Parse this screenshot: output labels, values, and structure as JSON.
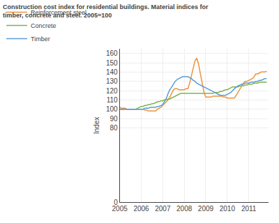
{
  "chart_data": {
    "type": "line",
    "title": "Construction cost index for residential buildings. Material indices for\ntimber, concrete and steel. 2005=100",
    "y_label": "Index",
    "x": [
      2005.0,
      2005.08,
      2005.17,
      2005.25,
      2005.33,
      2005.42,
      2005.5,
      2005.58,
      2005.67,
      2005.75,
      2005.83,
      2005.92,
      2006.0,
      2006.08,
      2006.17,
      2006.25,
      2006.33,
      2006.42,
      2006.5,
      2006.58,
      2006.67,
      2006.75,
      2006.83,
      2006.92,
      2007.0,
      2007.08,
      2007.17,
      2007.25,
      2007.33,
      2007.42,
      2007.5,
      2007.58,
      2007.67,
      2007.75,
      2007.83,
      2007.92,
      2008.0,
      2008.08,
      2008.17,
      2008.25,
      2008.33,
      2008.42,
      2008.5,
      2008.58,
      2008.67,
      2008.75,
      2008.83,
      2008.92,
      2009.0,
      2009.08,
      2009.17,
      2009.25,
      2009.33,
      2009.42,
      2009.5,
      2009.58,
      2009.67,
      2009.75,
      2009.83,
      2009.92,
      2010.0,
      2010.08,
      2010.17,
      2010.25,
      2010.33,
      2010.42,
      2010.5,
      2010.58,
      2010.67,
      2010.75,
      2010.83,
      2010.92,
      2011.0,
      2011.08,
      2011.17,
      2011.25,
      2011.33,
      2011.42,
      2011.5,
      2011.58,
      2011.67,
      2011.75,
      2011.83
    ],
    "series": [
      {
        "name": "Reinforcement steel",
        "color": "#f0933a",
        "values": [
          102,
          101,
          101,
          101,
          100,
          100,
          100,
          100,
          100,
          100,
          100,
          100,
          100,
          100,
          99,
          99,
          98,
          98,
          98,
          98,
          98,
          100,
          101,
          102,
          104,
          106,
          108,
          110,
          113,
          117,
          121,
          122,
          122,
          121,
          121,
          121,
          121,
          122,
          122,
          128,
          135,
          143,
          152,
          155,
          148,
          138,
          128,
          118,
          113,
          113,
          113,
          113,
          114,
          114,
          114,
          114,
          114,
          114,
          113,
          113,
          112,
          112,
          112,
          112,
          112,
          115,
          118,
          122,
          125,
          128,
          130,
          130,
          131,
          132,
          133,
          135,
          138,
          138,
          139,
          140,
          140,
          140,
          141
        ]
      },
      {
        "name": "Concrete",
        "color": "#7ab648",
        "values": [
          100,
          100,
          100,
          100,
          100,
          100,
          100,
          100,
          100,
          100,
          101,
          102,
          103,
          103,
          104,
          104,
          105,
          105,
          106,
          106,
          107,
          108,
          108,
          109,
          109,
          110,
          110,
          111,
          111,
          112,
          113,
          114,
          115,
          116,
          117,
          117,
          117,
          117,
          117,
          117,
          117,
          117,
          117,
          117,
          117,
          117,
          117,
          117,
          117,
          117,
          117,
          117,
          117,
          118,
          118,
          118,
          119,
          119,
          120,
          121,
          121,
          122,
          123,
          124,
          124,
          124,
          124,
          125,
          125,
          125,
          126,
          126,
          127,
          127,
          127,
          128,
          128,
          128,
          129,
          129,
          129,
          129,
          129
        ]
      },
      {
        "name": "Timber",
        "color": "#5b9bd5",
        "values": [
          100,
          100,
          100,
          100,
          100,
          100,
          100,
          100,
          100,
          100,
          100,
          100,
          100,
          100,
          101,
          101,
          101,
          102,
          102,
          102,
          102,
          103,
          103,
          104,
          105,
          108,
          112,
          117,
          121,
          124,
          127,
          130,
          132,
          133,
          134,
          135,
          135,
          135,
          135,
          134,
          133,
          131,
          130,
          128,
          127,
          126,
          125,
          124,
          123,
          122,
          121,
          120,
          119,
          118,
          117,
          116,
          115,
          115,
          115,
          115,
          116,
          117,
          118,
          120,
          122,
          124,
          125,
          126,
          127,
          127,
          128,
          128,
          128,
          129,
          129,
          129,
          130,
          130,
          131,
          131,
          132,
          133,
          133
        ]
      }
    ],
    "xlim": [
      2005.0,
      2011.92
    ],
    "xticks": [
      2005,
      2006,
      2007,
      2008,
      2009,
      2010,
      2011
    ],
    "ylim": [
      0,
      165
    ],
    "yticks": [
      0,
      80,
      90,
      100,
      110,
      120,
      130,
      140,
      150,
      160
    ],
    "grid": true,
    "legend": "upper left"
  }
}
